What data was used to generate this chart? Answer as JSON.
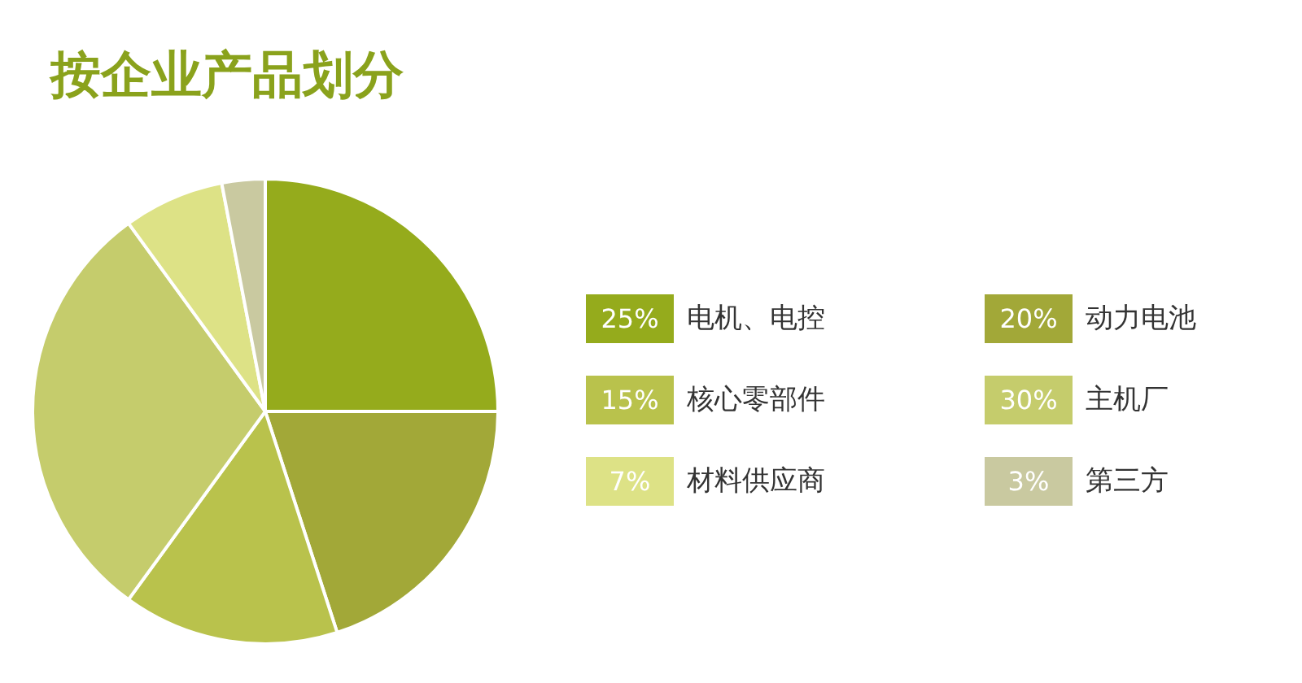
{
  "chart_data": {
    "type": "pie",
    "title": "按企业产品划分",
    "categories": [
      "电机、电控",
      "动力电池",
      "核心零部件",
      "主机厂",
      "材料供应商",
      "第三方"
    ],
    "values": [
      25,
      20,
      15,
      30,
      7,
      3
    ],
    "value_labels": [
      "25%",
      "20%",
      "15%",
      "30%",
      "7%",
      "3%"
    ],
    "colors": [
      "#95ab1c",
      "#a2a838",
      "#b9c24c",
      "#c5cc6c",
      "#dde286",
      "#c9c9a0"
    ],
    "legend": "right"
  }
}
